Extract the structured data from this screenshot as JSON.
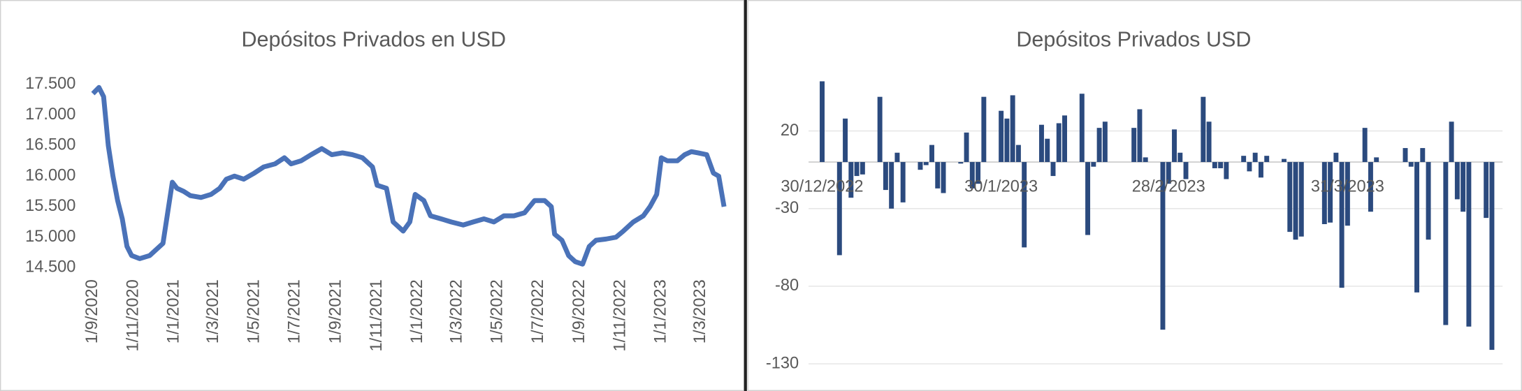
{
  "chart_data": [
    {
      "type": "line",
      "title": "Depósitos Privados en USD",
      "color": "#4a72b8",
      "x": [
        "2020-09-01",
        "2020-09-10",
        "2020-09-17",
        "2020-09-24",
        "2020-10-01",
        "2020-10-08",
        "2020-10-15",
        "2020-10-22",
        "2020-10-29",
        "2020-11-10",
        "2020-11-25",
        "2020-12-05",
        "2020-12-15",
        "2020-12-22",
        "2020-12-29",
        "2021-01-05",
        "2021-01-15",
        "2021-01-25",
        "2021-02-10",
        "2021-02-25",
        "2021-03-10",
        "2021-03-20",
        "2021-04-01",
        "2021-04-15",
        "2021-05-01",
        "2021-05-15",
        "2021-06-01",
        "2021-06-15",
        "2021-06-25",
        "2021-07-10",
        "2021-07-25",
        "2021-08-10",
        "2021-08-25",
        "2021-09-10",
        "2021-09-25",
        "2021-10-10",
        "2021-10-25",
        "2021-11-01",
        "2021-11-15",
        "2021-11-25",
        "2021-12-10",
        "2021-12-20",
        "2021-12-28",
        "2022-01-10",
        "2022-01-20",
        "2022-02-05",
        "2022-02-20",
        "2022-03-10",
        "2022-03-25",
        "2022-04-10",
        "2022-04-25",
        "2022-05-10",
        "2022-05-25",
        "2022-06-10",
        "2022-06-25",
        "2022-07-10",
        "2022-07-20",
        "2022-07-25",
        "2022-08-05",
        "2022-08-15",
        "2022-08-25",
        "2022-09-05",
        "2022-09-15",
        "2022-09-25",
        "2022-10-10",
        "2022-10-25",
        "2022-11-05",
        "2022-11-20",
        "2022-12-05",
        "2022-12-15",
        "2022-12-25",
        "2023-01-01",
        "2023-01-10",
        "2023-01-25",
        "2023-02-05",
        "2023-02-15",
        "2023-02-25",
        "2023-03-10",
        "2023-03-20",
        "2023-03-28",
        "2023-04-05"
      ],
      "values": [
        17350,
        17450,
        17300,
        16500,
        16000,
        15600,
        15300,
        14850,
        14700,
        14650,
        14700,
        14800,
        14900,
        15400,
        15900,
        15800,
        15750,
        15680,
        15650,
        15700,
        15800,
        15950,
        16000,
        15950,
        16050,
        16150,
        16200,
        16300,
        16200,
        16250,
        16350,
        16450,
        16350,
        16380,
        16350,
        16300,
        16150,
        15850,
        15800,
        15250,
        15100,
        15250,
        15700,
        15600,
        15350,
        15300,
        15250,
        15200,
        15250,
        15300,
        15250,
        15350,
        15350,
        15400,
        15600,
        15600,
        15500,
        15050,
        14950,
        14700,
        14600,
        14560,
        14850,
        14950,
        14970,
        15000,
        15100,
        15250,
        15350,
        15500,
        15700,
        16300,
        16250,
        16250,
        16350,
        16400,
        16380,
        16350,
        16050,
        16000,
        15500
      ],
      "xlim": [
        "2020-08-28",
        "2023-04-08"
      ],
      "xticks": [
        {
          "value": "2020-09-01",
          "label": "1/9/2020"
        },
        {
          "value": "2020-11-01",
          "label": "1/11/2020"
        },
        {
          "value": "2021-01-01",
          "label": "1/1/2021"
        },
        {
          "value": "2021-03-01",
          "label": "1/3/2021"
        },
        {
          "value": "2021-05-01",
          "label": "1/5/2021"
        },
        {
          "value": "2021-07-01",
          "label": "1/7/2021"
        },
        {
          "value": "2021-09-01",
          "label": "1/9/2021"
        },
        {
          "value": "2021-11-01",
          "label": "1/11/2021"
        },
        {
          "value": "2022-01-01",
          "label": "1/1/2022"
        },
        {
          "value": "2022-03-01",
          "label": "1/3/2022"
        },
        {
          "value": "2022-05-01",
          "label": "1/5/2022"
        },
        {
          "value": "2022-07-01",
          "label": "1/7/2022"
        },
        {
          "value": "2022-09-01",
          "label": "1/9/2022"
        },
        {
          "value": "2022-11-01",
          "label": "1/11/2022"
        },
        {
          "value": "2023-01-01",
          "label": "1/1/2023"
        },
        {
          "value": "2023-03-01",
          "label": "1/3/2023"
        }
      ],
      "ylim": [
        14500,
        17500
      ],
      "yticks": [
        {
          "value": 14500,
          "label": "14.500"
        },
        {
          "value": 15000,
          "label": "15.000"
        },
        {
          "value": 15500,
          "label": "15.500"
        },
        {
          "value": 16000,
          "label": "16.000"
        },
        {
          "value": 16500,
          "label": "16.500"
        },
        {
          "value": 17000,
          "label": "17.000"
        },
        {
          "value": 17500,
          "label": "17.500"
        }
      ],
      "grid": false
    },
    {
      "type": "bar",
      "title": "Depósitos Privados USD",
      "color": "#2b4a7e",
      "x": [
        "2022-12-30",
        "2023-01-02",
        "2023-01-03",
        "2023-01-04",
        "2023-01-05",
        "2023-01-06",
        "2023-01-09",
        "2023-01-10",
        "2023-01-11",
        "2023-01-12",
        "2023-01-13",
        "2023-01-16",
        "2023-01-17",
        "2023-01-18",
        "2023-01-19",
        "2023-01-20",
        "2023-01-23",
        "2023-01-24",
        "2023-01-25",
        "2023-01-26",
        "2023-01-27",
        "2023-01-30",
        "2023-01-31",
        "2023-02-01",
        "2023-02-02",
        "2023-02-03",
        "2023-02-06",
        "2023-02-07",
        "2023-02-08",
        "2023-02-09",
        "2023-02-10",
        "2023-02-13",
        "2023-02-14",
        "2023-02-15",
        "2023-02-16",
        "2023-02-17",
        "2023-02-22",
        "2023-02-23",
        "2023-02-24",
        "2023-02-27",
        "2023-02-28",
        "2023-03-01",
        "2023-03-02",
        "2023-03-03",
        "2023-03-06",
        "2023-03-07",
        "2023-03-08",
        "2023-03-09",
        "2023-03-10",
        "2023-03-13",
        "2023-03-14",
        "2023-03-15",
        "2023-03-16",
        "2023-03-17",
        "2023-03-20",
        "2023-03-21",
        "2023-03-22",
        "2023-03-23",
        "2023-03-27",
        "2023-03-28",
        "2023-03-29",
        "2023-03-30",
        "2023-03-31",
        "2023-04-03",
        "2023-04-04",
        "2023-04-05",
        "2023-04-10",
        "2023-04-11",
        "2023-04-12",
        "2023-04-13",
        "2023-04-14",
        "2023-04-17",
        "2023-04-18",
        "2023-04-19",
        "2023-04-20",
        "2023-04-21",
        "2023-04-24",
        "2023-04-25"
      ],
      "values": [
        52,
        -60,
        28,
        -23,
        -9,
        -8,
        42,
        -18,
        -30,
        6,
        -26,
        -5,
        -2,
        11,
        -17,
        -20,
        -1,
        19,
        -17,
        -14,
        42,
        33,
        28,
        43,
        11,
        -55,
        24,
        15,
        -9,
        25,
        30,
        44,
        -47,
        -3,
        22,
        26,
        22,
        34,
        3,
        -108,
        -14,
        21,
        6,
        -11,
        42,
        26,
        -4,
        -4,
        -11,
        4,
        -6,
        6,
        -10,
        4,
        2,
        -45,
        -50,
        -48,
        -40,
        -39,
        6,
        -81,
        -41,
        22,
        -32,
        3,
        9,
        -3,
        -84,
        9,
        -50,
        -105,
        26,
        -24,
        -32,
        -106,
        -36,
        -121
      ],
      "xlim": [
        "2022-12-30",
        "2023-04-25"
      ],
      "xticks": [
        {
          "value": "2022-12-30",
          "label": "30/12/2022"
        },
        {
          "value": "2023-01-30",
          "label": "30/1/2023"
        },
        {
          "value": "2023-02-28",
          "label": "28/2/2023"
        },
        {
          "value": "2023-03-31",
          "label": "31/3/2023"
        }
      ],
      "ylim": [
        -130,
        55
      ],
      "yticks": [
        -130,
        -80,
        -30,
        20
      ],
      "grid": true
    }
  ]
}
